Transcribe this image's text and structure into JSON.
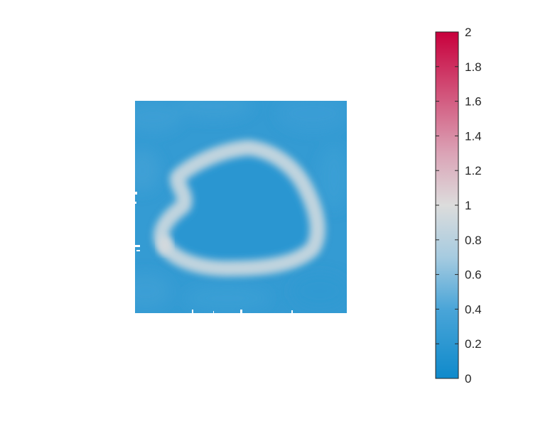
{
  "chart_data": {
    "type": "heatmap",
    "title": "",
    "xlabel": "",
    "ylabel": "",
    "axes_visible": false,
    "colorbar": {
      "location": "right",
      "range": [
        0,
        2
      ],
      "ticks": [
        0,
        0.2,
        0.4,
        0.6,
        0.8,
        1,
        1.2,
        1.4,
        1.6,
        1.8,
        2
      ],
      "tick_labels": [
        "0",
        "0.2",
        "0.4",
        "0.6",
        "0.8",
        "1",
        "1.2",
        "1.4",
        "1.6",
        "1.8",
        "2"
      ],
      "colormap": [
        {
          "value": 0,
          "color": "#0f8acb"
        },
        {
          "value": 0.4,
          "color": "#4aa5d8"
        },
        {
          "value": 0.7,
          "color": "#a6cbe0"
        },
        {
          "value": 1.0,
          "color": "#dcdcdc"
        },
        {
          "value": 1.3,
          "color": "#dba3b6"
        },
        {
          "value": 2,
          "color": "#c8003c"
        }
      ]
    },
    "field": {
      "background_value": 0.25,
      "interior_value": 0.18,
      "ring_peak_value": 0.85,
      "ring_max_value": 0.95
    }
  }
}
